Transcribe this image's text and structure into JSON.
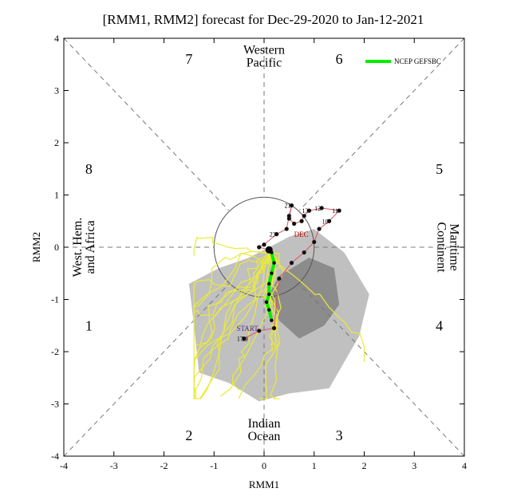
{
  "chart_data": {
    "type": "line",
    "title": "[RMM1, RMM2] forecast for Dec-29-2020 to Jan-12-2021",
    "xlabel": "RMM1",
    "ylabel": "RMM2",
    "xlim": [
      -4,
      4
    ],
    "ylim": [
      -4,
      4
    ],
    "xticks": [
      "-4",
      "-3",
      "-2",
      "-1",
      "0",
      "1",
      "2",
      "3",
      "4"
    ],
    "yticks": [
      "-4",
      "-3",
      "-2",
      "-1",
      "0",
      "1",
      "2",
      "3",
      "4"
    ],
    "grid": false,
    "legend_position": "top-right",
    "phases": [
      {
        "label": "1",
        "x": -3.5,
        "y": -1.5
      },
      {
        "label": "2",
        "x": -1.5,
        "y": -3.6
      },
      {
        "label": "3",
        "x": 1.5,
        "y": -3.6
      },
      {
        "label": "4",
        "x": 3.5,
        "y": -1.5
      },
      {
        "label": "5",
        "x": 3.5,
        "y": 1.5
      },
      {
        "label": "6",
        "x": 1.5,
        "y": 3.6
      },
      {
        "label": "7",
        "x": -1.5,
        "y": 3.6
      },
      {
        "label": "8",
        "x": -3.5,
        "y": 1.5
      }
    ],
    "regions": {
      "top": [
        "Western",
        "Pacific"
      ],
      "bottom": [
        "Indian",
        "Ocean"
      ],
      "left": [
        "West. Hem.",
        "and Africa"
      ],
      "right": [
        "Maritime",
        "Continent"
      ]
    },
    "observed": {
      "color": "#e05060",
      "points": [
        {
          "day": "17",
          "x": -0.4,
          "y": -1.75
        },
        {
          "day": "",
          "x": -0.1,
          "y": -1.6
        },
        {
          "day": "",
          "x": 0.2,
          "y": -1.55
        },
        {
          "day": "",
          "x": 0.3,
          "y": -0.6
        },
        {
          "day": "",
          "x": 0.55,
          "y": -0.3
        },
        {
          "day": "",
          "x": 0.8,
          "y": -0.1
        },
        {
          "day": "",
          "x": 1.0,
          "y": 0.1
        },
        {
          "day": "",
          "x": 1.1,
          "y": 0.35
        },
        {
          "day": "10",
          "x": 1.3,
          "y": 0.5
        },
        {
          "day": "11",
          "x": 1.5,
          "y": 0.7
        },
        {
          "day": "12",
          "x": 1.15,
          "y": 0.75
        },
        {
          "day": "13",
          "x": 0.9,
          "y": 0.7
        },
        {
          "day": "",
          "x": 0.8,
          "y": 0.6
        },
        {
          "day": "",
          "x": 0.75,
          "y": 0.5
        },
        {
          "day": "",
          "x": 0.6,
          "y": 0.45
        },
        {
          "day": "",
          "x": 0.5,
          "y": 0.55
        },
        {
          "day": "21",
          "x": 0.55,
          "y": 0.8
        },
        {
          "day": "",
          "x": 0.5,
          "y": 0.6
        },
        {
          "day": "",
          "x": 0.45,
          "y": 0.35
        },
        {
          "day": "23",
          "x": 0.25,
          "y": 0.25
        },
        {
          "day": "",
          "x": 0.0,
          "y": 0.05
        },
        {
          "day": "",
          "x": -0.1,
          "y": 0.0
        },
        {
          "day": "",
          "x": 0.1,
          "y": -0.05
        }
      ]
    },
    "labels": {
      "start": "START",
      "start_day": "19",
      "dec": "DEC"
    },
    "series": [
      {
        "name": "NCEP GEFSBC",
        "color": "#00ee00",
        "x": [
          0.15,
          0.2,
          0.15,
          0.1,
          0.1,
          0.05,
          0.1,
          0.15
        ],
        "y": [
          -0.1,
          -0.3,
          -0.5,
          -0.7,
          -0.9,
          -1.05,
          -1.2,
          -1.4
        ]
      }
    ],
    "ensemble": {
      "color": "#eaea3a",
      "outer_shade": "#c0c0c0",
      "inner_shade": "#8c8c8c"
    },
    "amplitude_circle_radius": 1
  }
}
